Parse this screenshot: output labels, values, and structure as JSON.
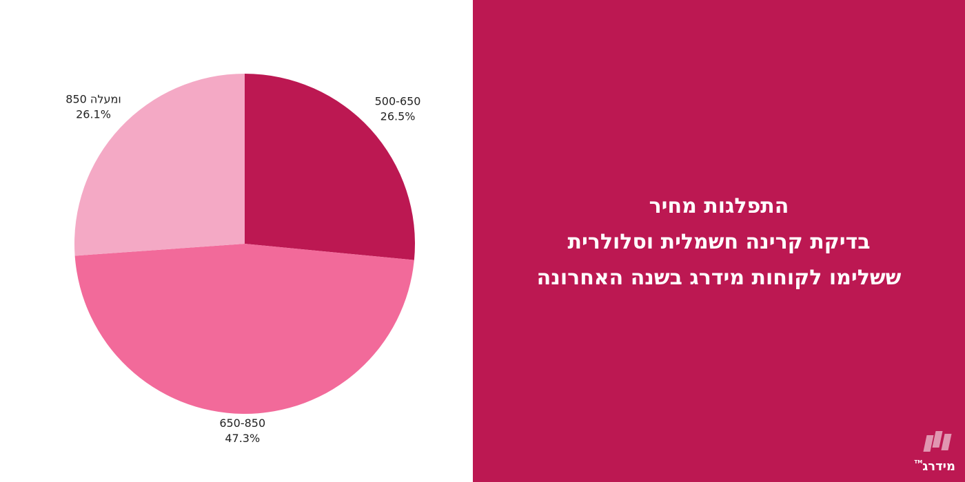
{
  "chart_data": {
    "type": "pie",
    "categories": [
      "500-650",
      "650-850",
      "850 ומעלה"
    ],
    "values": [
      26.5,
      47.3,
      26.1
    ],
    "labels": [
      "26.5%",
      "47.3%",
      "26.1%"
    ],
    "colors": [
      "#bc1852",
      "#f26a9a",
      "#f4a9c5"
    ],
    "start_angle_deg": 0,
    "direction": "clockwise",
    "title": ""
  },
  "title": {
    "line1": "התפלגות מחיר",
    "line2": "בדיקת קרינה חשמלית וסלולרית",
    "line3": "ששלימו לקוחות מידרג בשנה האחרונה"
  },
  "brand": {
    "name": "מידרג",
    "tm": "TM",
    "color": "#bc1852"
  }
}
